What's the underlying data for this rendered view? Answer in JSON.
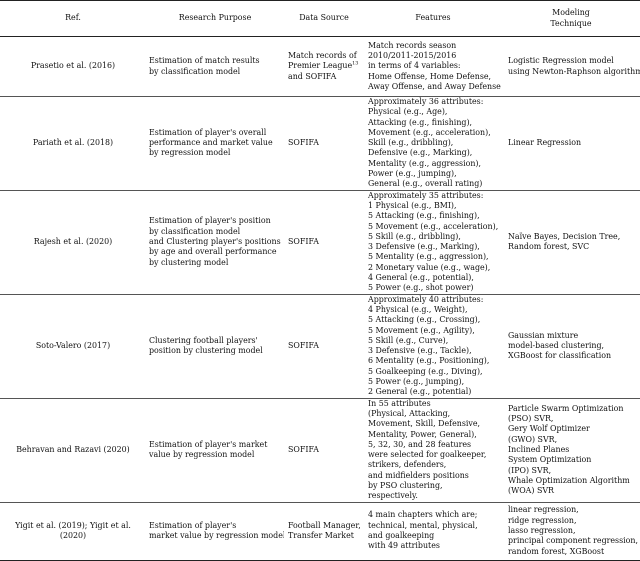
{
  "header": {
    "ref": "Ref.",
    "purpose": "Research Purpose",
    "source": "Data Source",
    "features": "Features",
    "technique_line1": "Modeling",
    "technique_line2": "Technique"
  },
  "rows": [
    {
      "ref": "Prasetio et al. (2016)",
      "purpose": [
        "Estimation of match results",
        "by classification model"
      ],
      "source": [
        "Match records of",
        "Premier League",
        "and SOFIFA"
      ],
      "source_sup": "13",
      "features": [
        "Match records season",
        "2010/2011-2015/2016",
        "in terms of 4 variables:",
        "Home Offense, Home Defense,",
        "Away Offense, and Away Defense"
      ],
      "technique": [
        "Logistic Regression model",
        "using Newton-Raphson algorithm"
      ]
    },
    {
      "ref": "Pariath et al. (2018)",
      "purpose": [
        "Estimation of player's overall",
        "performance and market value",
        "by regression model"
      ],
      "source": [
        "SOFIFA"
      ],
      "features": [
        "Approximately 36 attributes:",
        "Physical (e.g., Age),",
        "Attacking (e.g., finishing),",
        "Movement (e.g., acceleration),",
        "Skill (e.g., dribbling),",
        "Defensive (e.g., Marking),",
        "Mentality (e.g., aggression),",
        "Power (e.g., jumping),",
        "General (e.g., overall rating)"
      ],
      "technique": [
        "Linear Regression"
      ]
    },
    {
      "ref": "Rajesh et al. (2020)",
      "purpose": [
        "Estimation of player's position",
        "by classification model",
        "and Clustering player's positions",
        "by age and overall performance",
        "by clustering model"
      ],
      "source": [
        "SOFIFA"
      ],
      "features": [
        "Approximately 35 attributes:",
        "1 Physical (e.g., BMI),",
        "5 Attacking (e.g., finishing),",
        "5 Movement (e.g., acceleration),",
        "5 Skill (e.g., dribbling),",
        "3 Defensive (e.g., Marking),",
        "5 Mentality (e.g., aggression),",
        "2 Monetary value (e.g., wage),",
        "4 General (e.g., potential),",
        "5 Power (e.g., shot power)"
      ],
      "technique": [
        "Naïve Bayes, Decision Tree,",
        "Random forest, SVC"
      ]
    },
    {
      "ref": "Soto-Valero (2017)",
      "purpose": [
        "Clustering football players'",
        "position by clustering model"
      ],
      "source": [
        "SOFIFA"
      ],
      "features": [
        "Approximately 40 attributes:",
        "4 Physical (e.g., Weight),",
        "5 Attacking (e.g., Crossing),",
        "5 Movement (e.g., Agility),",
        "5 Skill (e.g., Curve),",
        "3 Defensive (e.g., Tackle),",
        "6 Mentality (e.g., Positioning),",
        "5 Goalkeeping (e.g., Diving),",
        "5 Power (e.g., jumping),",
        "2 General (e.g., potential)"
      ],
      "technique": [
        "Gaussian mixture",
        "model-based clustering,",
        "XGBoost for classification"
      ]
    },
    {
      "ref": "Behravan and Razavi (2020)",
      "purpose": [
        "Estimation of player's market",
        "value by regression model"
      ],
      "source": [
        "SOFIFA"
      ],
      "features": [
        "In 55 attributes",
        "(Physical, Attacking,",
        "Movement, Skill, Defensive,",
        "Mentality, Power, General),",
        "5, 32, 30, and 28 features",
        "were selected for goalkeeper,",
        "strikers, defenders,",
        "and midfielders positions",
        "by PSO clustering,",
        "respectively."
      ],
      "technique": [
        "Particle Swarm Optimization",
        "(PSO) SVR,",
        "Gery Wolf Optimizer",
        "(GWO) SVR,",
        "Inclined Planes",
        "System Optimization",
        "(IPO) SVR,",
        "Whale Optimization Algorithm",
        "(WOA) SVR"
      ]
    },
    {
      "ref": "Yigit et al. (2019); Yigit et al. (2020)",
      "purpose": [
        "Estimation of player's",
        "market value by regression model"
      ],
      "source": [
        "Football Manager,",
        "Transfer Market"
      ],
      "features": [
        "4 main chapters which are;",
        "technical, mental, physical,",
        "and goalkeeping",
        "with 49 attributes"
      ],
      "technique": [
        "linear regression,",
        "ridge regression,",
        "lasso regression,",
        "principal component regression,",
        "random forest, XGBoost"
      ]
    }
  ]
}
